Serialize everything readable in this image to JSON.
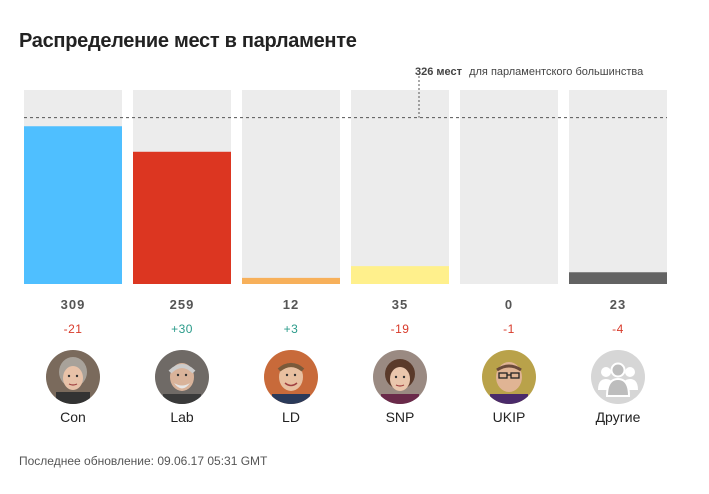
{
  "title": "Распределение мест в парламенте",
  "footer": "Последнее обновление: 09.06.17 05:31 GMT",
  "colors": {
    "track": "#ececec",
    "Con": "#4fbfff",
    "Lab": "#dc3621",
    "LD": "#f7b05a",
    "SNP": "#fff08c",
    "UKIP": "#7a3f96",
    "Other": "#636363"
  },
  "chart_data": {
    "type": "bar",
    "categories": [
      "Con",
      "Lab",
      "LD",
      "SNP",
      "UKIP",
      "Другие"
    ],
    "values": [
      309,
      259,
      12,
      35,
      0,
      23
    ],
    "changes": [
      "-21",
      "+30",
      "+3",
      "-19",
      "-1",
      "-4"
    ],
    "ylim": [
      0,
      380
    ],
    "grid": false,
    "reference_line": {
      "value": 326,
      "label_bold": "326 мест",
      "label_rest": "для парламентского большинства"
    }
  },
  "icons": [
    "may-portrait-icon",
    "corbyn-portrait-icon",
    "farron-portrait-icon",
    "sturgeon-portrait-icon",
    "nuttall-portrait-icon",
    "people-group-icon"
  ]
}
